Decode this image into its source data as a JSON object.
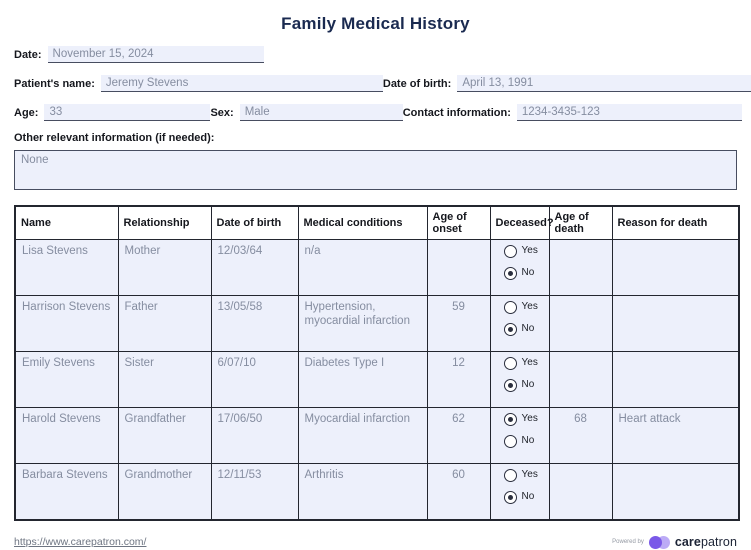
{
  "title": "Family Medical History",
  "fields": {
    "date": {
      "label": "Date:",
      "value": "November 15, 2024"
    },
    "patient_name": {
      "label": "Patient's name:",
      "value": "Jeremy Stevens"
    },
    "date_of_birth": {
      "label": "Date of birth:",
      "value": "April 13, 1991"
    },
    "age": {
      "label": "Age:",
      "value": "33"
    },
    "sex": {
      "label": "Sex:",
      "value": "Male"
    },
    "contact": {
      "label": "Contact information:",
      "value": "1234-3435-123"
    },
    "other_info": {
      "label": "Other relevant information (if needed):",
      "value": "None"
    }
  },
  "table": {
    "headers": [
      "Name",
      "Relationship",
      "Date of birth",
      "Medical conditions",
      "Age of onset",
      "Deceased?",
      "Age of death",
      "Reason for death"
    ],
    "radio_options": [
      "Yes",
      "No"
    ],
    "rows": [
      {
        "name": "Lisa Stevens",
        "relationship": "Mother",
        "dob": "12/03/64",
        "conditions": "n/a",
        "onset": "",
        "deceased": "No",
        "age_death": "",
        "reason": ""
      },
      {
        "name": "Harrison Stevens",
        "relationship": "Father",
        "dob": "13/05/58",
        "conditions": "Hypertension, myocardial infarction",
        "onset": "59",
        "deceased": "No",
        "age_death": "",
        "reason": ""
      },
      {
        "name": "Emily Stevens",
        "relationship": "Sister",
        "dob": "6/07/10",
        "conditions": "Diabetes Type I",
        "onset": "12",
        "deceased": "No",
        "age_death": "",
        "reason": ""
      },
      {
        "name": "Harold Stevens",
        "relationship": "Grandfather",
        "dob": "17/06/50",
        "conditions": "Myocardial infarction",
        "onset": "62",
        "deceased": "Yes",
        "age_death": "68",
        "reason": "Heart attack"
      },
      {
        "name": "Barbara Stevens",
        "relationship": "Grandmother",
        "dob": "12/11/53",
        "conditions": "Arthritis",
        "onset": "60",
        "deceased": "No",
        "age_death": "",
        "reason": ""
      }
    ]
  },
  "footer": {
    "link": "https://www.carepatron.com/",
    "powered_by": "Powered by",
    "brand_bold": "care",
    "brand_light": "patron"
  },
  "colors": {
    "title_navy": "#1a2a50",
    "field_background": "#edf0fb",
    "field_text": "#858da0",
    "border_dark": "#23262f",
    "logo_purple_dark": "#7a59e8",
    "logo_purple_light": "#bcabf6"
  }
}
